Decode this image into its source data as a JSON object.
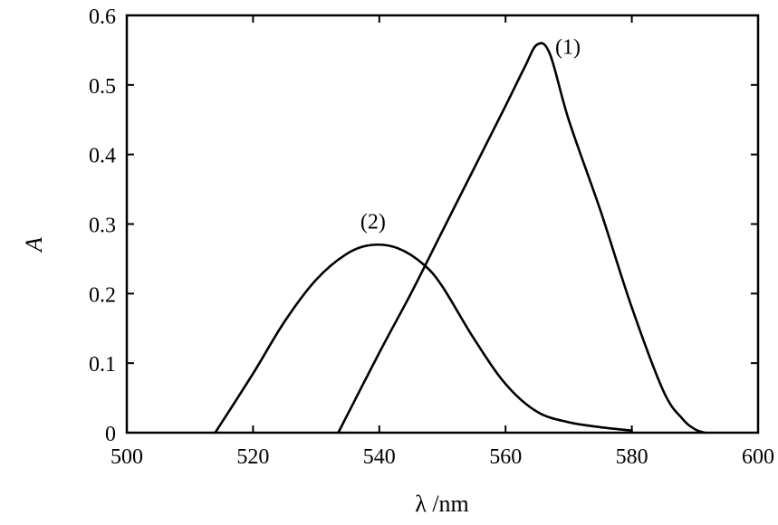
{
  "chart_data": {
    "type": "line",
    "title": "",
    "xlabel": "λ /nm",
    "ylabel": "A",
    "xlim": [
      500,
      600
    ],
    "ylim": [
      0,
      0.6
    ],
    "x_ticks": [
      "500",
      "520",
      "540",
      "560",
      "580",
      "600"
    ],
    "y_ticks": [
      "0",
      "0.1",
      "0.2",
      "0.3",
      "0.4",
      "0.5",
      "0.6"
    ],
    "grid": false,
    "legend": "none",
    "series": [
      {
        "label": "(1)",
        "x": [
          533.5,
          540,
          545,
          550,
          555,
          560,
          563,
          565,
          567,
          570,
          575,
          580,
          585,
          588,
          590,
          591.5
        ],
        "y": [
          0.0,
          0.115,
          0.2,
          0.29,
          0.38,
          0.47,
          0.525,
          0.558,
          0.545,
          0.45,
          0.32,
          0.18,
          0.06,
          0.02,
          0.005,
          0.0
        ]
      },
      {
        "label": "(2)",
        "x": [
          514,
          520,
          525,
          530,
          535,
          539,
          543,
          547,
          550,
          555,
          560,
          565,
          570,
          575,
          580
        ],
        "y": [
          0.0,
          0.085,
          0.16,
          0.22,
          0.258,
          0.27,
          0.265,
          0.242,
          0.21,
          0.135,
          0.07,
          0.03,
          0.015,
          0.008,
          0.003
        ]
      }
    ]
  }
}
